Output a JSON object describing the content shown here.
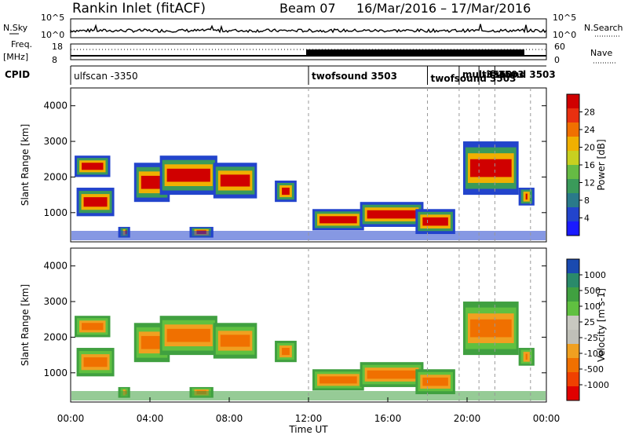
{
  "header": {
    "station": "Rankin Inlet (fitACF)",
    "beam": "Beam 07",
    "date_range": "16/Mar/2016 – 17/Mar/2016"
  },
  "left_labels": {
    "nsky": "N.Sky",
    "freq_top": "Freq.",
    "freq_unit": "[MHz]",
    "cpid": "CPID"
  },
  "right_labels": {
    "nsearch": "N.Search",
    "nave": "Nave"
  },
  "noise_ticks": {
    "left_top": "10^5",
    "left_bottom": "10^0",
    "right_top": "10^5",
    "right_bottom": "10^0"
  },
  "freq_ticks": {
    "left_top": "18",
    "left_bottom": "8",
    "right_top": "60",
    "right_bottom": "0"
  },
  "cpid_segments": [
    {
      "label": "ulfscan -3350",
      "start_hour": 0.0
    },
    {
      "label": "twofsound 3503",
      "start_hour": 12.0
    },
    {
      "label": "twofsound 3503",
      "start_hour": 18.0
    },
    {
      "label": "multifsound 3503",
      "start_hour": 19.6
    },
    {
      "label": "-3560",
      "start_hour": 20.6
    },
    {
      "label": "3503",
      "start_hour": 21.4
    }
  ],
  "colors": {
    "power_scale": [
      "#1a1aff",
      "#2244cc",
      "#2a7a8a",
      "#3a9a5a",
      "#66bb44",
      "#c8d020",
      "#f0b000",
      "#f07000",
      "#e83010",
      "#d00000"
    ],
    "velocity_scale": [
      "#e00000",
      "#f04000",
      "#f07000",
      "#f0a020",
      "#c0c0b8",
      "#c8c8c0",
      "#60c040",
      "#40a040",
      "#2a8a6a",
      "#1a4ab0"
    ]
  },
  "chart_data": [
    {
      "type": "heatmap",
      "panel": "power",
      "ylabel": "Slant Range [km]",
      "yticks": [
        "1000",
        "2000",
        "3000",
        "4000"
      ],
      "ylim": [
        180,
        4500
      ],
      "xlim_hours": [
        0,
        24
      ],
      "colorbar": {
        "label": "Power [dB]",
        "ticks": [
          "4",
          "8",
          "12",
          "16",
          "20",
          "24",
          "28"
        ]
      }
    },
    {
      "type": "heatmap",
      "panel": "velocity",
      "ylabel": "Slant Range [km]",
      "yticks": [
        "1000",
        "2000",
        "3000",
        "4000"
      ],
      "ylim": [
        180,
        4500
      ],
      "xlim_hours": [
        0,
        24
      ],
      "xlabel": "Time UT",
      "xticks": [
        "00:00",
        "04:00",
        "08:00",
        "12:00",
        "16:00",
        "20:00",
        "00:00"
      ],
      "colorbar": {
        "label": "Velocity [m s-1]",
        "ticks": [
          "-1000",
          "-500",
          "-100",
          "-25",
          "25",
          "100",
          "500",
          "1000"
        ]
      }
    }
  ]
}
